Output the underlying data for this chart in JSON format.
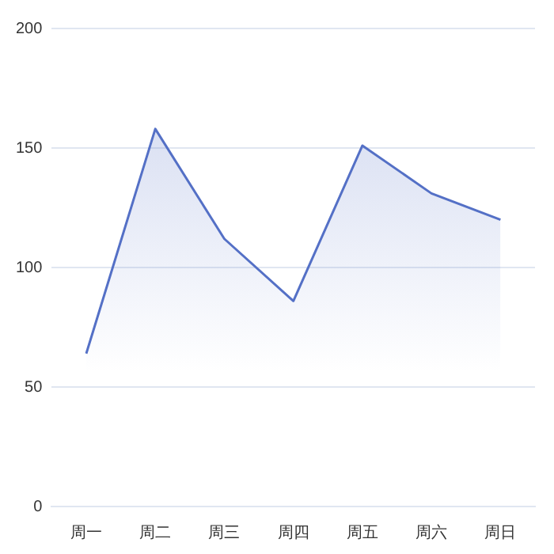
{
  "chart_data": {
    "type": "area",
    "categories": [
      "周一",
      "周二",
      "周三",
      "周四",
      "周五",
      "周六",
      "周日"
    ],
    "series": [
      {
        "color": "#5470c6",
        "values": [
          64,
          158,
          112,
          86,
          151,
          131,
          120
        ]
      }
    ],
    "ylim": [
      0,
      200
    ],
    "yticks": [
      0,
      50,
      100,
      150,
      200
    ],
    "grid": "y",
    "legend": false,
    "marker": "none",
    "line_style": "solid"
  }
}
